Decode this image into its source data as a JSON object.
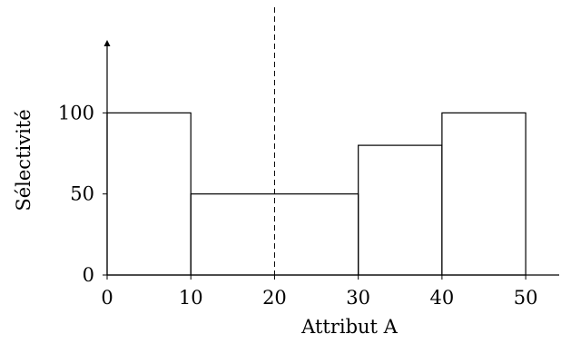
{
  "chart_data": {
    "type": "bar",
    "title": "",
    "xlabel": "Attribut A",
    "ylabel": "Sélectivité",
    "xlim": [
      0,
      54
    ],
    "ylim": [
      0,
      145
    ],
    "xticks": [
      0,
      10,
      20,
      30,
      40,
      50
    ],
    "yticks": [
      0,
      50,
      100
    ],
    "bins": [
      {
        "x0": 0,
        "x1": 10,
        "value": 100
      },
      {
        "x0": 10,
        "x1": 30,
        "value": 50
      },
      {
        "x0": 30,
        "x1": 40,
        "value": 80
      },
      {
        "x0": 40,
        "x1": 50,
        "value": 100
      }
    ],
    "reference_line": {
      "x": 20,
      "style": "dashed"
    },
    "grid": false,
    "legend": "none"
  }
}
